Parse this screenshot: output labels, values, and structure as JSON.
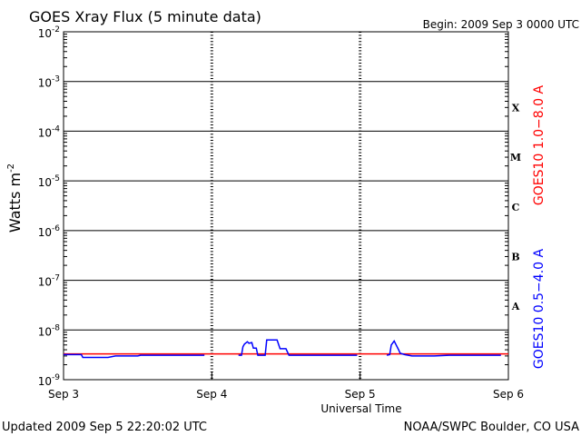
{
  "chart_data": {
    "type": "line",
    "title": "GOES Xray Flux (5 minute data)",
    "begin_label": "Begin:  2009 Sep 3 0000 UTC",
    "ylabel_base": "Watts m",
    "ylabel_exp": "-2",
    "xlabel": "Universal Time",
    "y_scale": "log",
    "ylim": [
      1e-09,
      0.01
    ],
    "xlim_days": [
      0,
      3
    ],
    "x_ticks": [
      "Sep 3",
      "Sep 4",
      "Sep 5",
      "Sep 6"
    ],
    "y_ticks": [
      {
        "base": "10",
        "exp": "-2",
        "value": 0.01
      },
      {
        "base": "10",
        "exp": "-3",
        "value": 0.001
      },
      {
        "base": "10",
        "exp": "-4",
        "value": 0.0001
      },
      {
        "base": "10",
        "exp": "-5",
        "value": 1e-05
      },
      {
        "base": "10",
        "exp": "-6",
        "value": 1e-06
      },
      {
        "base": "10",
        "exp": "-7",
        "value": 1e-07
      },
      {
        "base": "10",
        "exp": "-8",
        "value": 1e-08
      },
      {
        "base": "10",
        "exp": "-9",
        "value": 1e-09
      }
    ],
    "flare_classes": [
      {
        "label": "X",
        "value": 0.0003
      },
      {
        "label": "M",
        "value": 3e-05
      },
      {
        "label": "C",
        "value": 3e-06
      },
      {
        "label": "B",
        "value": 3e-07
      },
      {
        "label": "A",
        "value": 3e-08
      }
    ],
    "series": [
      {
        "name": "GOES10 1.0−8.0 A",
        "color": "#ff0000",
        "segments": [
          [
            [
              0.0,
              3.3e-09
            ],
            [
              0.5,
              3.3e-09
            ],
            [
              1.0,
              3.3e-09
            ],
            [
              1.5,
              3.3e-09
            ],
            [
              2.0,
              3.3e-09
            ],
            [
              2.5,
              3.3e-09
            ],
            [
              3.0,
              3.3e-09
            ]
          ]
        ]
      },
      {
        "name": "GOES10 0.5−4.0 A",
        "color": "#0000ff",
        "segments": [
          [
            [
              0.0,
              3.2e-09
            ],
            [
              0.12,
              3.2e-09
            ],
            [
              0.13,
              2.8e-09
            ],
            [
              0.3,
              2.8e-09
            ],
            [
              0.35,
              3e-09
            ],
            [
              0.5,
              3e-09
            ],
            [
              0.52,
              3.1e-09
            ],
            [
              0.95,
              3.1e-09
            ]
          ],
          [
            [
              1.18,
              3.1e-09
            ],
            [
              1.2,
              3.1e-09
            ],
            [
              1.21,
              4.6e-09
            ],
            [
              1.22,
              5.2e-09
            ],
            [
              1.24,
              5.8e-09
            ],
            [
              1.25,
              5.4e-09
            ],
            [
              1.27,
              5.6e-09
            ],
            [
              1.28,
              4.3e-09
            ],
            [
              1.3,
              4.3e-09
            ],
            [
              1.31,
              3.1e-09
            ],
            [
              1.36,
              3.1e-09
            ],
            [
              1.37,
              6.3e-09
            ],
            [
              1.44,
              6.3e-09
            ],
            [
              1.46,
              4.2e-09
            ],
            [
              1.5,
              4.2e-09
            ],
            [
              1.52,
              3.1e-09
            ],
            [
              1.7,
              3.1e-09
            ],
            [
              1.98,
              3.1e-09
            ]
          ],
          [
            [
              2.18,
              3.1e-09
            ],
            [
              2.2,
              3.2e-09
            ],
            [
              2.21,
              5e-09
            ],
            [
              2.23,
              6e-09
            ],
            [
              2.24,
              5.2e-09
            ],
            [
              2.26,
              4e-09
            ],
            [
              2.27,
              3.4e-09
            ],
            [
              2.3,
              3.2e-09
            ],
            [
              2.35,
              3e-09
            ],
            [
              2.5,
              3e-09
            ],
            [
              2.6,
              3.1e-09
            ],
            [
              2.95,
              3.1e-09
            ]
          ]
        ]
      }
    ]
  },
  "footer": {
    "updated": "Updated 2009 Sep  5 22:20:02 UTC",
    "source": "NOAA/SWPC Boulder, CO USA"
  }
}
